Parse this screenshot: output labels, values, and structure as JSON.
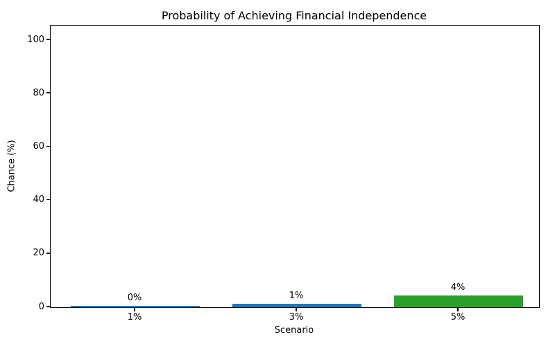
{
  "chart_data": {
    "type": "bar",
    "title": "Probability of Achieving Financial Independence",
    "xlabel": "Scenario",
    "ylabel": "Chance (%)",
    "categories": [
      "1%",
      "3%",
      "5%"
    ],
    "values": [
      0.4,
      1.2,
      4.4
    ],
    "bar_labels": [
      "0%",
      "1%",
      "4%"
    ],
    "bar_colors": [
      "#1f77b4",
      "#1f77b4",
      "#2ca02c"
    ],
    "yticks": [
      0,
      20,
      40,
      60,
      80,
      100
    ],
    "ylim": [
      0,
      105
    ],
    "grid": false,
    "legend_position": "none",
    "background_color": "#ffffff",
    "axis_color": "#000000",
    "text_color": "#000000"
  }
}
